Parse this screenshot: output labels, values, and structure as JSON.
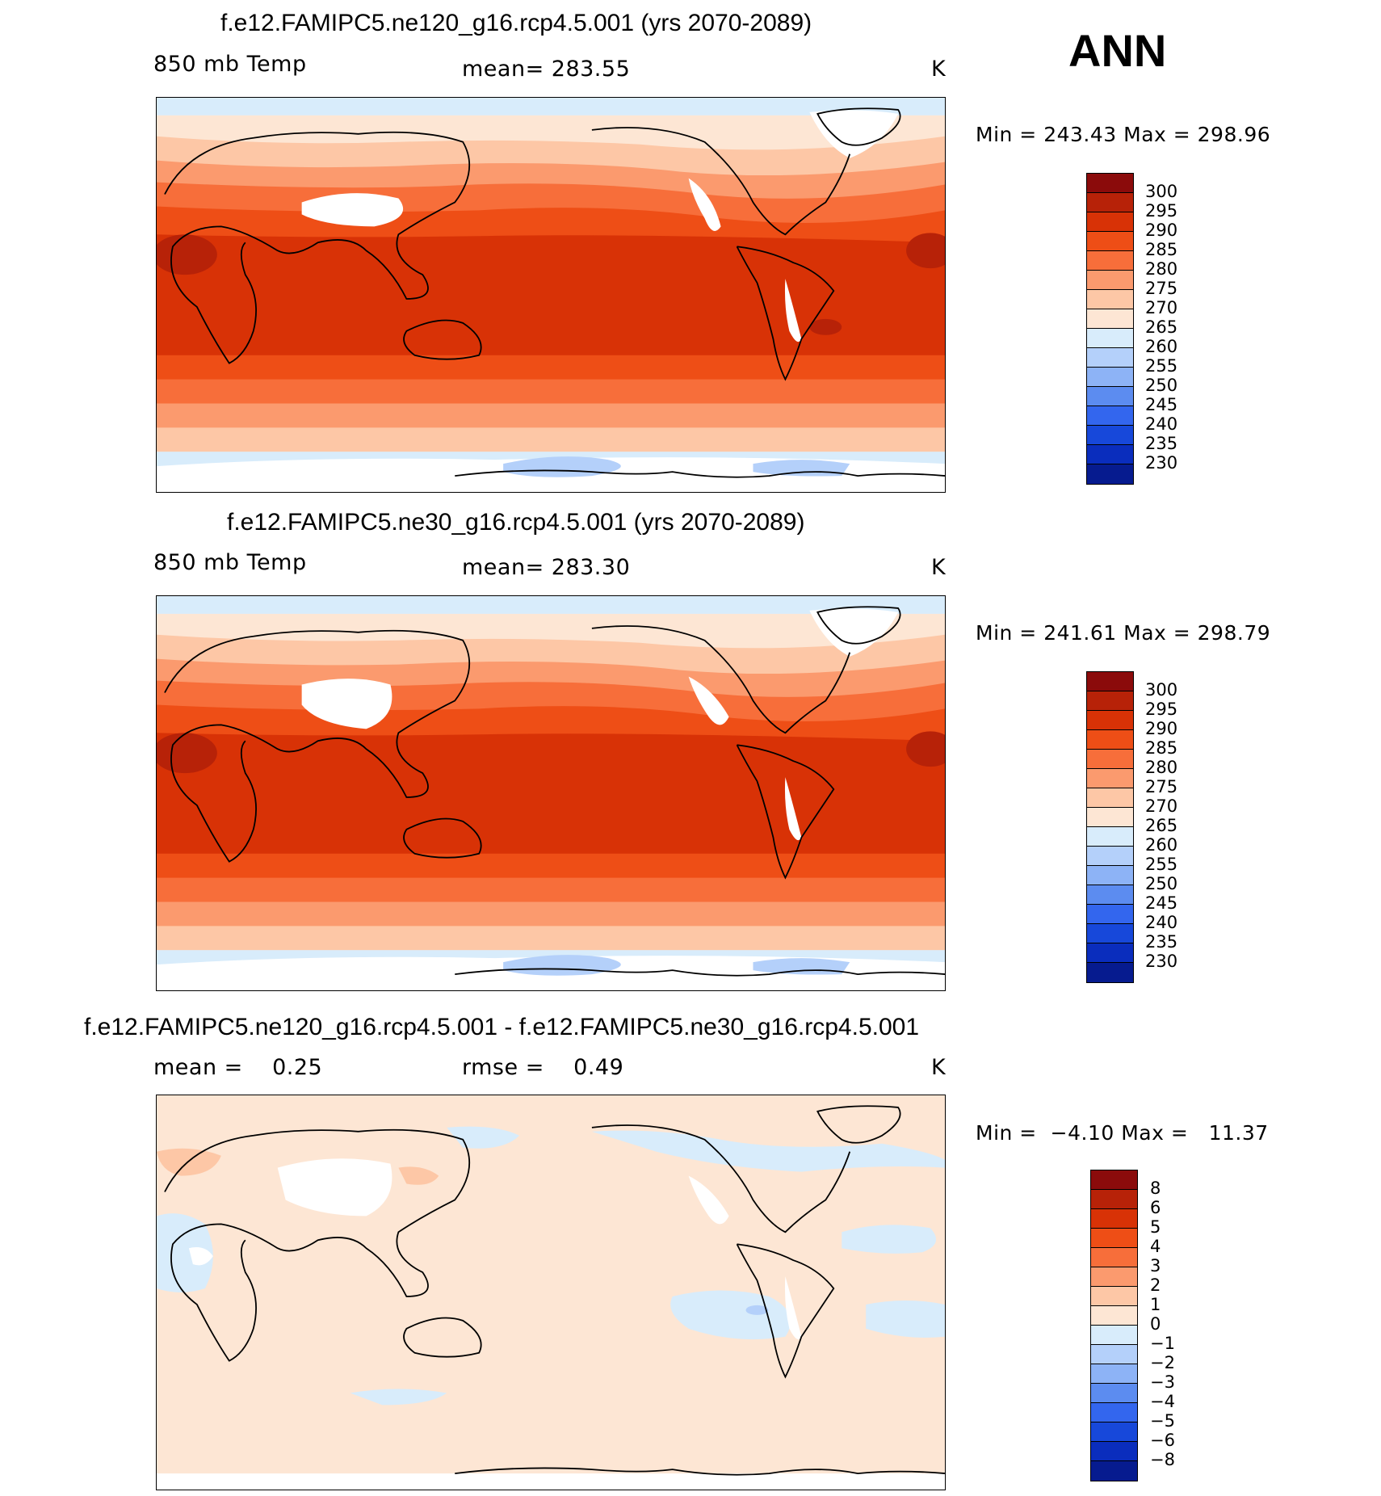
{
  "header": {
    "season": "ANN"
  },
  "panels": [
    {
      "title": "f.e12.FAMIPC5.ne120_g16.rcp4.5.001 (yrs 2070-2089)",
      "variable": "850 mb Temp",
      "stat": "mean= 283.55",
      "units": "K",
      "minmax": "Min = 243.43 Max = 298.96",
      "colorbar": {
        "labels": [
          "300",
          "295",
          "290",
          "285",
          "280",
          "275",
          "270",
          "265",
          "260",
          "255",
          "250",
          "245",
          "240",
          "235",
          "230"
        ],
        "colors": [
          "#8b0b0b",
          "#b72208",
          "#d83206",
          "#ee4e16",
          "#f76e3a",
          "#fb9a6e",
          "#fdc7a6",
          "#fde6d4",
          "#d8ecfb",
          "#b4d0fa",
          "#8db3f6",
          "#5c8cf0",
          "#3366ee",
          "#1748da",
          "#0a2dbd",
          "#061b8f"
        ]
      }
    },
    {
      "title": "f.e12.FAMIPC5.ne30_g16.rcp4.5.001 (yrs 2070-2089)",
      "variable": "850 mb Temp",
      "stat": "mean= 283.30",
      "units": "K",
      "minmax": "Min = 241.61 Max = 298.79",
      "colorbar": {
        "labels": [
          "300",
          "295",
          "290",
          "285",
          "280",
          "275",
          "270",
          "265",
          "260",
          "255",
          "250",
          "245",
          "240",
          "235",
          "230"
        ],
        "colors": [
          "#8b0b0b",
          "#b72208",
          "#d83206",
          "#ee4e16",
          "#f76e3a",
          "#fb9a6e",
          "#fdc7a6",
          "#fde6d4",
          "#d8ecfb",
          "#b4d0fa",
          "#8db3f6",
          "#5c8cf0",
          "#3366ee",
          "#1748da",
          "#0a2dbd",
          "#061b8f"
        ]
      }
    },
    {
      "title": "f.e12.FAMIPC5.ne120_g16.rcp4.5.001 - f.e12.FAMIPC5.ne30_g16.rcp4.5.001",
      "stat_left": "mean =    0.25",
      "stat": "rmse =    0.49",
      "units": "K",
      "minmax": "Min =  −4.10 Max =   11.37",
      "colorbar": {
        "labels": [
          "8",
          "6",
          "5",
          "4",
          "3",
          "2",
          "1",
          "0",
          "−1",
          "−2",
          "−3",
          "−4",
          "−5",
          "−6",
          "−8"
        ],
        "colors": [
          "#8b0b0b",
          "#b72208",
          "#d83206",
          "#ee4e16",
          "#f76e3a",
          "#fb9a6e",
          "#fdc7a6",
          "#fde6d4",
          "#d8ecfb",
          "#b4d0fa",
          "#8db3f6",
          "#5c8cf0",
          "#3366ee",
          "#1748da",
          "#0a2dbd",
          "#061b8f"
        ]
      }
    }
  ]
}
